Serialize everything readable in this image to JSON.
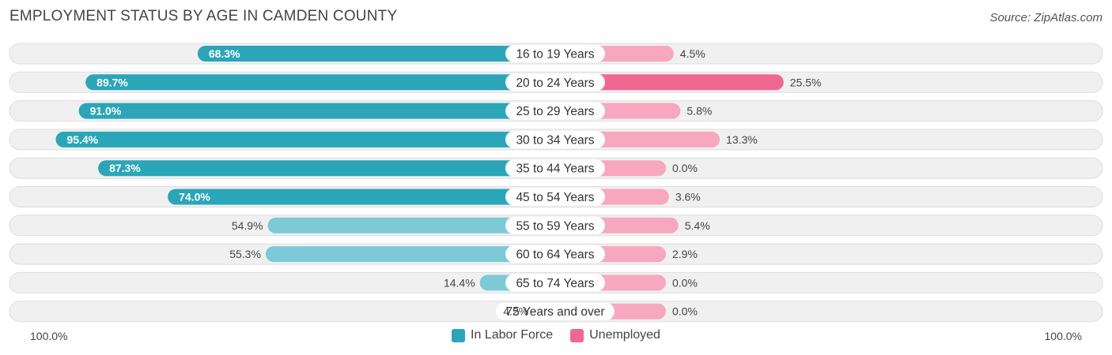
{
  "title": "EMPLOYMENT STATUS BY AGE IN CAMDEN COUNTY",
  "source": "Source: ZipAtlas.com",
  "colors": {
    "labor_strong": "#2aa6b8",
    "labor_light": "#7ccad5",
    "unemployed_strong": "#f06892",
    "unemployed_light": "#f7a7c0",
    "track": "#f0f0f0"
  },
  "axis": {
    "left_label": "100.0%",
    "right_label": "100.0%"
  },
  "legend": [
    {
      "label": "In Labor Force",
      "color": "#2aa6b8"
    },
    {
      "label": "Unemployed",
      "color": "#f06892"
    }
  ],
  "chart_data": {
    "type": "bar",
    "orientation": "diverging-horizontal",
    "categories": [
      "16 to 19 Years",
      "20 to 24 Years",
      "25 to 29 Years",
      "30 to 34 Years",
      "35 to 44 Years",
      "45 to 54 Years",
      "55 to 59 Years",
      "60 to 64 Years",
      "65 to 74 Years",
      "75 Years and over"
    ],
    "series": [
      {
        "name": "In Labor Force",
        "values": [
          68.3,
          89.7,
          91.0,
          95.4,
          87.3,
          74.0,
          54.9,
          55.3,
          14.4,
          4.2
        ],
        "labels": [
          "68.3%",
          "89.7%",
          "91.0%",
          "95.4%",
          "87.3%",
          "74.0%",
          "54.9%",
          "55.3%",
          "14.4%",
          "4.2%"
        ]
      },
      {
        "name": "Unemployed",
        "values": [
          4.5,
          25.5,
          5.8,
          13.3,
          0.0,
          3.6,
          5.4,
          2.9,
          0.0,
          0.0
        ],
        "labels": [
          "4.5%",
          "25.5%",
          "5.8%",
          "13.3%",
          "0.0%",
          "3.6%",
          "5.4%",
          "2.9%",
          "0.0%",
          "0.0%"
        ]
      }
    ],
    "xlim": [
      -100,
      100
    ],
    "grid": false,
    "legend_position": "bottom-center"
  }
}
